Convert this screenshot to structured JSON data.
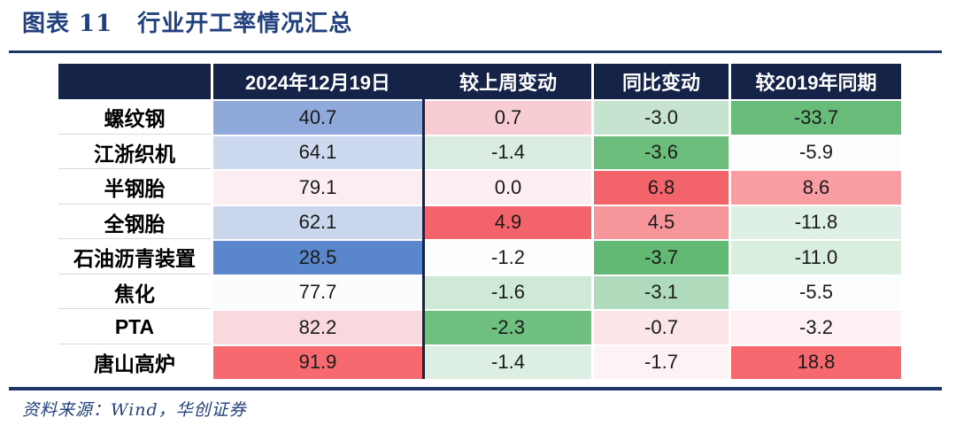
{
  "figure": {
    "label": "图表 11",
    "title": "行业开工率情况汇总",
    "source": "资料来源：Wind，华创证券"
  },
  "colors": {
    "accent_title": "#23407e",
    "rule": "#1c3666",
    "header_bg": "#152349",
    "header_text": "#ffffff",
    "cell_text": "#1a1a1a",
    "label_divider": "#d9d9d9"
  },
  "chart_data": {
    "type": "table",
    "title": "行业开工率情况汇总",
    "legend_note": "cell backgrounds are conditional-format heatmap colors: blue=low/red=high for level column, green=negative/red=positive for change columns",
    "columns": [
      "2024年12月19日",
      "较上周变动",
      "同比变动",
      "较2019年同期"
    ],
    "rows": [
      {
        "label": "螺纹钢",
        "values": [
          "40.7",
          "0.7",
          "-3.0",
          "-33.7"
        ],
        "cell_colors": [
          "#8ea9da",
          "#f8ccd3",
          "#c5e3ce",
          "#69bb79"
        ]
      },
      {
        "label": "江浙织机",
        "values": [
          "64.1",
          "-1.4",
          "-3.6",
          "-5.9"
        ],
        "cell_colors": [
          "#ccd9ee",
          "#d9ecdf",
          "#6cbd7c",
          "#fcfdfe"
        ]
      },
      {
        "label": "半钢胎",
        "values": [
          "79.1",
          "0.0",
          "6.8",
          "8.6"
        ],
        "cell_colors": [
          "#fceef0",
          "#fdeff1",
          "#f2646a",
          "#f89da1"
        ]
      },
      {
        "label": "全钢胎",
        "values": [
          "62.1",
          "4.9",
          "4.5",
          "-11.8"
        ],
        "cell_colors": [
          "#c9d6ec",
          "#f2646a",
          "#f6959a",
          "#def0e4"
        ]
      },
      {
        "label": "石油沥青装置",
        "values": [
          "28.5",
          "-1.2",
          "-3.7",
          "-11.0"
        ],
        "cell_colors": [
          "#5a87cc",
          "#fdfeff",
          "#62b974",
          "#daeee0"
        ]
      },
      {
        "label": "焦化",
        "values": [
          "77.7",
          "-1.6",
          "-3.1",
          "-5.5"
        ],
        "cell_colors": [
          "#fbfcfe",
          "#cfe9d7",
          "#afdbbc",
          "#fcfdfe"
        ]
      },
      {
        "label": "PTA",
        "values": [
          "82.2",
          "-2.3",
          "-0.7",
          "-3.2"
        ],
        "cell_colors": [
          "#f9d9dd",
          "#6fbf80",
          "#fbe5e8",
          "#fdf1f3"
        ]
      },
      {
        "label": "唐山高炉",
        "values": [
          "91.9",
          "-1.4",
          "-1.7",
          "18.8"
        ],
        "cell_colors": [
          "#f5696f",
          "#dcefe2",
          "#fdf2f4",
          "#f4686e"
        ]
      }
    ]
  }
}
